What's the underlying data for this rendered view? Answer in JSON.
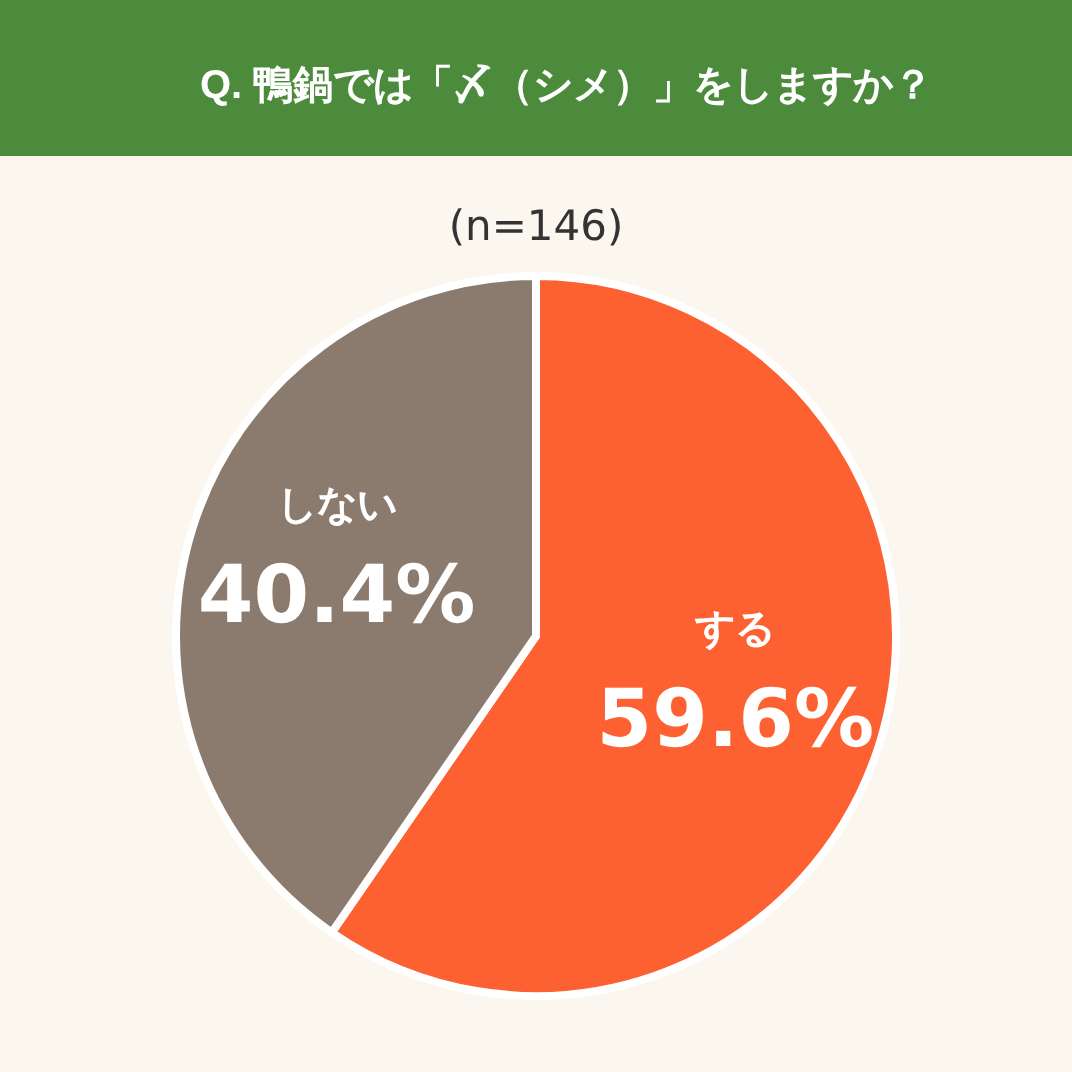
{
  "chart_data": {
    "type": "pie",
    "title": "Q. 鴨鍋では「〆（シメ）」をしますか？",
    "subtitle": "(n=146)",
    "categories": [
      "する",
      "しない"
    ],
    "values": [
      59.6,
      40.4
    ],
    "colors": [
      "#fd6131",
      "#8b7b6f"
    ],
    "value_labels": [
      "59.6%",
      "40.4%"
    ]
  }
}
